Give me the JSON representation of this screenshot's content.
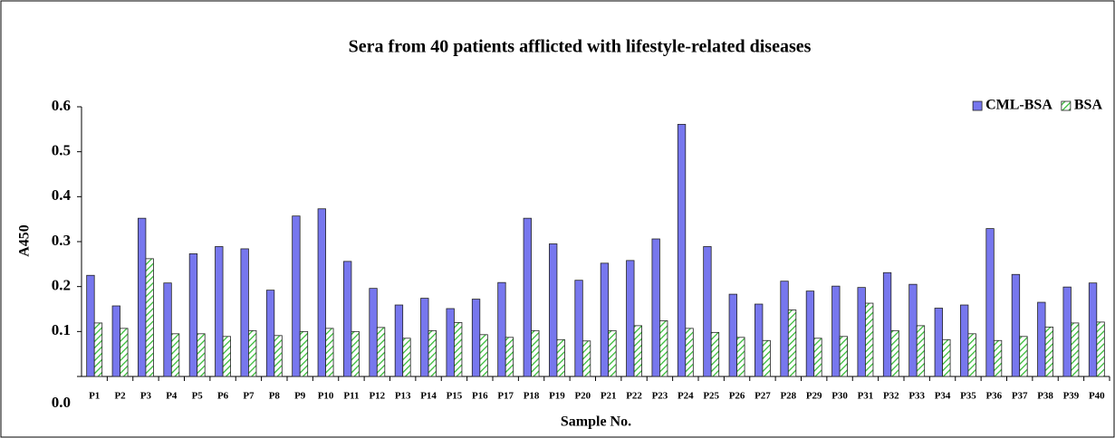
{
  "chart_data": {
    "type": "bar",
    "title": "Sera from 40 patients afflicted with lifestyle-related diseases",
    "x_label": "Sample No.",
    "y_label": "A450",
    "categories": [
      "P1",
      "P2",
      "P3",
      "P4",
      "P5",
      "P6",
      "P7",
      "P8",
      "P9",
      "P10",
      "P11",
      "P12",
      "P13",
      "P14",
      "P15",
      "P16",
      "P17",
      "P18",
      "P19",
      "P20",
      "P21",
      "P22",
      "P23",
      "P24",
      "P25",
      "P26",
      "P27",
      "P28",
      "P29",
      "P30",
      "P31",
      "P32",
      "P33",
      "P34",
      "P35",
      "P36",
      "P37",
      "P38",
      "P39",
      "P40"
    ],
    "series": [
      {
        "name": "CML-BSA",
        "color": "#7777ee",
        "pattern": "solid",
        "values": [
          0.225,
          0.157,
          0.352,
          0.208,
          0.273,
          0.289,
          0.284,
          0.192,
          0.357,
          0.373,
          0.256,
          0.196,
          0.159,
          0.174,
          0.151,
          0.172,
          0.209,
          0.352,
          0.295,
          0.214,
          0.252,
          0.258,
          0.306,
          0.561,
          0.289,
          0.183,
          0.161,
          0.212,
          0.19,
          0.201,
          0.198,
          0.231,
          0.205,
          0.152,
          0.159,
          0.329,
          0.227,
          0.165,
          0.199,
          0.208
        ]
      },
      {
        "name": "BSA",
        "color": "#33bb33",
        "pattern": "hatch",
        "values": [
          0.119,
          0.107,
          0.262,
          0.095,
          0.095,
          0.089,
          0.102,
          0.091,
          0.1,
          0.107,
          0.1,
          0.109,
          0.085,
          0.102,
          0.12,
          0.093,
          0.087,
          0.102,
          0.082,
          0.079,
          0.102,
          0.113,
          0.124,
          0.107,
          0.098,
          0.087,
          0.08,
          0.148,
          0.085,
          0.089,
          0.163,
          0.102,
          0.113,
          0.082,
          0.095,
          0.08,
          0.089,
          0.11,
          0.119,
          0.121
        ]
      }
    ],
    "ylim": [
      0,
      0.6
    ],
    "yticks": [
      {
        "value": 0,
        "label": "0.0"
      },
      0.1,
      0.2,
      0.3,
      0.4,
      0.5,
      0.6
    ],
    "grid": false,
    "legend": "top-right"
  }
}
